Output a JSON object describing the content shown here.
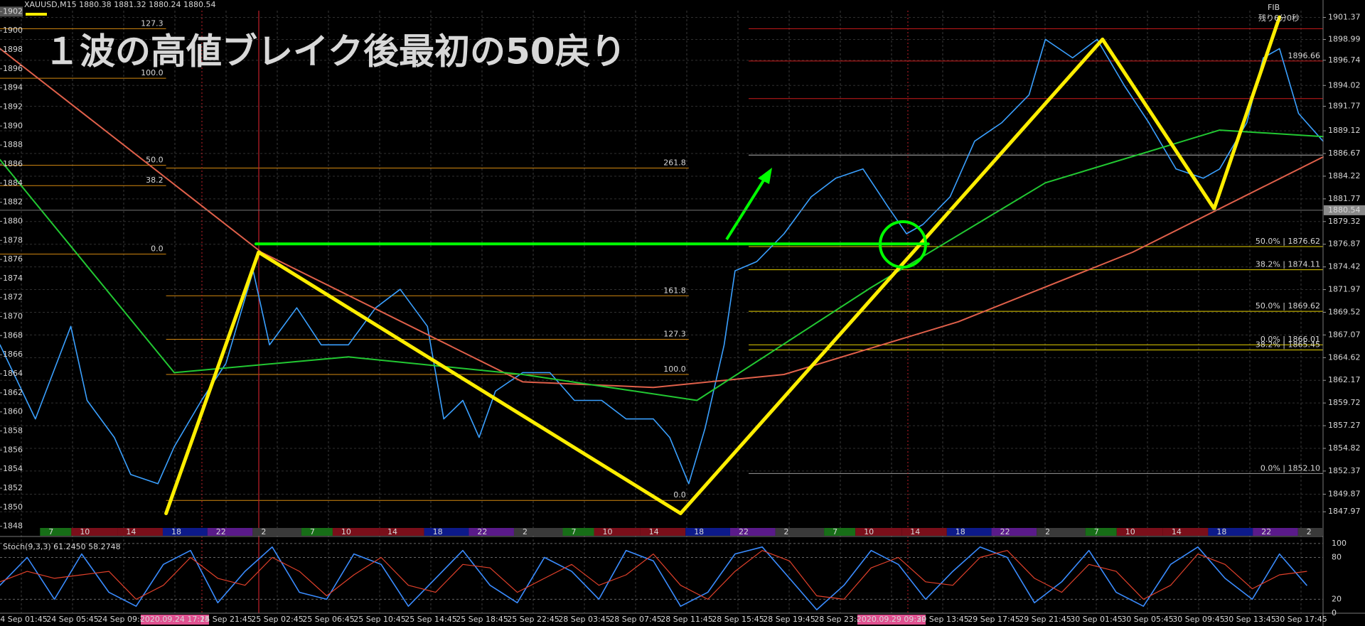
{
  "chart_data": [
    {
      "type": "line",
      "symbol_label": "XAUUSD,M15  1880.38 1881.32 1880.24 1880.54",
      "title": "１波の高値ブレイク後最初の50戻り",
      "fib_title": "FIB",
      "timer_label": "残り6分0秒",
      "current_price": 1880.54,
      "xlim": [
        0,
        486
      ],
      "ylim": [
        1846.3,
        1902.1
      ],
      "yticks": [
        1901.37,
        1898.99,
        1896.74,
        1894.02,
        1891.77,
        1889.12,
        1886.67,
        1884.22,
        1881.77,
        1879.32,
        1876.87,
        1874.42,
        1871.97,
        1869.52,
        1867.07,
        1864.62,
        1862.17,
        1859.72,
        1857.27,
        1854.82,
        1852.37,
        1849.87,
        1847.97
      ],
      "y2lim": [
        1847.9,
        1902.1
      ],
      "y2ticks": [
        1902,
        1900,
        1898,
        1896,
        1894,
        1892,
        1890,
        1888,
        1886,
        1884,
        1882,
        1880,
        1878,
        1876,
        1874,
        1872,
        1870,
        1868,
        1866,
        1864,
        1862,
        1860,
        1858,
        1856,
        1854,
        1852,
        1850,
        1848
      ],
      "grid": true,
      "series": [
        {
          "color": "#3aa0ff",
          "width": 1.6,
          "x": [
            0,
            13,
            26,
            32,
            42,
            48,
            58,
            64,
            74,
            83,
            93,
            99,
            109,
            118,
            128,
            138,
            147,
            157,
            163,
            170,
            176,
            182,
            192,
            202,
            211,
            221,
            230,
            240,
            246,
            253,
            259,
            266,
            270,
            278,
            288,
            298,
            307,
            317,
            326,
            333,
            339,
            349,
            358,
            368,
            378,
            384,
            394,
            403,
            413,
            422,
            432,
            442,
            448,
            458,
            464,
            470,
            477,
            486
          ],
          "values": [
            1866,
            1858,
            1868,
            1860,
            1856,
            1852,
            1851,
            1855,
            1860,
            1864,
            1874,
            1866,
            1870,
            1866,
            1866,
            1870,
            1872,
            1868,
            1858,
            1860,
            1856,
            1861,
            1863,
            1863,
            1860,
            1860,
            1858,
            1858,
            1856,
            1851,
            1857,
            1866,
            1874,
            1875,
            1878,
            1882,
            1884,
            1885,
            1881,
            1878,
            1879,
            1882,
            1888,
            1890,
            1893,
            1899,
            1897,
            1899,
            1894,
            1890,
            1885,
            1884,
            1885,
            1890,
            1897,
            1898,
            1891,
            1888
          ]
        },
        {
          "color": "#e0604a",
          "width": 2,
          "x": [
            0,
            96,
            192,
            240,
            288,
            352,
            416,
            486
          ],
          "values": [
            1898,
            1876,
            1862,
            1861.4,
            1862.8,
            1868.5,
            1876,
            1886.3
          ]
        },
        {
          "color": "#22c832",
          "width": 2,
          "x": [
            0,
            64,
            128,
            192,
            256,
            320,
            384,
            448,
            486
          ],
          "values": [
            1886,
            1863,
            1864.7,
            1862.8,
            1860,
            1872.2,
            1883.5,
            1889.2,
            1888.5
          ]
        },
        {
          "color": "#ffee00",
          "width": 5,
          "x": [
            61,
            95,
            250,
            405,
            446,
            470
          ],
          "values": [
            1847.8,
            1876,
            1847.8,
            1899,
            1880.7,
            1901.4
          ]
        },
        {
          "color": "#00ff00",
          "width": 4,
          "x": [
            94,
            341
          ],
          "values": [
            1876.9,
            1876.9
          ]
        }
      ],
      "fib_levels": [
        {
          "text": "127.3",
          "price": 1900.15,
          "x": [
            0,
            61
          ],
          "color": "#d4880f"
        },
        {
          "text": "100.0",
          "price": 1894.8,
          "x": [
            0,
            61
          ],
          "color": "#d4880f"
        },
        {
          "text": "50.0",
          "price": 1885.4,
          "x": [
            0,
            61
          ],
          "color": "#d4880f"
        },
        {
          "text": "38.2",
          "price": 1883.2,
          "x": [
            0,
            61
          ],
          "color": "#d4880f"
        },
        {
          "text": "0.0",
          "price": 1875.8,
          "x": [
            0,
            61
          ],
          "color": "#d4880f"
        },
        {
          "text": "261.8",
          "price": 1885.1,
          "x": [
            61,
            253
          ],
          "color": "#d4880f"
        },
        {
          "text": "161.8",
          "price": 1871.3,
          "x": [
            61,
            253
          ],
          "color": "#d4880f"
        },
        {
          "text": "127.3",
          "price": 1866.6,
          "x": [
            61,
            253
          ],
          "color": "#d4880f"
        },
        {
          "text": "100.0",
          "price": 1862.8,
          "x": [
            61,
            253
          ],
          "color": "#d4880f"
        },
        {
          "text": "0.0",
          "price": 1849.2,
          "x": [
            61,
            253
          ],
          "color": "#d4880f"
        },
        {
          "price": 1900.15,
          "x": [
            275,
            486
          ],
          "color": "#cc1a1a"
        },
        {
          "text": "1896.66",
          "price": 1896.66,
          "x": [
            275,
            486
          ],
          "color": "#cc1a1a"
        },
        {
          "price": 1892.6,
          "x": [
            275,
            486
          ],
          "color": "#cc1a1a"
        },
        {
          "price": 1886.5,
          "x": [
            275,
            486
          ],
          "color": "#b0b0b0"
        },
        {
          "text": "50.0% | 1876.62",
          "price": 1876.62,
          "x": [
            275,
            486
          ],
          "color": "#e6d000"
        },
        {
          "text": "38.2% | 1874.11",
          "price": 1874.11,
          "x": [
            275,
            486
          ],
          "color": "#e6d000"
        },
        {
          "text": "50.0% | 1869.62",
          "price": 1869.62,
          "x": [
            275,
            486
          ],
          "color": "#e6d000"
        },
        {
          "text": "0.0% | 1866.01",
          "price": 1866.01,
          "x": [
            275,
            486
          ],
          "color": "#e6d000"
        },
        {
          "text": "38.2% | 1865.45",
          "price": 1865.45,
          "x": [
            275,
            486
          ],
          "color": "#e6d000"
        },
        {
          "text": "0.0% | 1852.10",
          "price": 1852.1,
          "x": [
            275,
            486
          ],
          "color": "#9a9a9a"
        }
      ],
      "session": [
        {
          "text": "7",
          "x": 14.7,
          "color": "#176e17"
        },
        {
          "text": "10",
          "x": 26.2,
          "color": "#7a0f1a"
        },
        {
          "text": "14",
          "x": 43.2,
          "color": "#7a0f1a"
        },
        {
          "text": "18",
          "x": 59.8,
          "color": "#0d1a8a"
        },
        {
          "text": "22",
          "x": 76.2,
          "color": "#5a1a8a"
        },
        {
          "text": "2",
          "x": 92.8,
          "color": "#3a3a3a"
        },
        {
          "text": "7",
          "x": 110.7,
          "color": "#176e17"
        },
        {
          "text": "10",
          "x": 122.2,
          "color": "#7a0f1a"
        },
        {
          "text": "14",
          "x": 139.2,
          "color": "#7a0f1a"
        },
        {
          "text": "18",
          "x": 155.8,
          "color": "#0d1a8a"
        },
        {
          "text": "22",
          "x": 172.2,
          "color": "#5a1a8a"
        },
        {
          "text": "2",
          "x": 188.8,
          "color": "#3a3a3a"
        },
        {
          "text": "7",
          "x": 206.7,
          "color": "#176e17"
        },
        {
          "text": "10",
          "x": 218.2,
          "color": "#7a0f1a"
        },
        {
          "text": "14",
          "x": 235.2,
          "color": "#7a0f1a"
        },
        {
          "text": "18",
          "x": 251.8,
          "color": "#0d1a8a"
        },
        {
          "text": "22",
          "x": 268.2,
          "color": "#5a1a8a"
        },
        {
          "text": "2",
          "x": 284.8,
          "color": "#3a3a3a"
        },
        {
          "text": "7",
          "x": 302.7,
          "color": "#176e17"
        },
        {
          "text": "10",
          "x": 314.2,
          "color": "#7a0f1a"
        },
        {
          "text": "14",
          "x": 331.2,
          "color": "#7a0f1a"
        },
        {
          "text": "18",
          "x": 347.8,
          "color": "#0d1a8a"
        },
        {
          "text": "22",
          "x": 364.2,
          "color": "#5a1a8a"
        },
        {
          "text": "2",
          "x": 380.8,
          "color": "#3a3a3a"
        },
        {
          "text": "7",
          "x": 398.7,
          "color": "#176e17"
        },
        {
          "text": "10",
          "x": 410.2,
          "color": "#7a0f1a"
        },
        {
          "text": "14",
          "x": 427.2,
          "color": "#7a0f1a"
        },
        {
          "text": "18",
          "x": 443.8,
          "color": "#0d1a8a"
        },
        {
          "text": "22",
          "x": 460.2,
          "color": "#5a1a8a"
        },
        {
          "text": "2",
          "x": 476.8,
          "color": "#3a3a3a"
        }
      ],
      "time_labels": [
        {
          "text": "24 Sep 01:45"
        },
        {
          "text": "24 Sep 05:45"
        },
        {
          "text": "24 Sep 09:45"
        },
        {
          "text": "2020.09.24 17:15",
          "highlight": true
        },
        {
          "text": "24 Sep 21:45"
        },
        {
          "text": "25 Sep 02:45"
        },
        {
          "text": "25 Sep 06:45"
        },
        {
          "text": "25 Sep 10:45"
        },
        {
          "text": "25 Sep 14:45"
        },
        {
          "text": "25 Sep 18:45"
        },
        {
          "text": "25 Sep 22:45"
        },
        {
          "text": "28 Sep 03:45"
        },
        {
          "text": "28 Sep 07:45"
        },
        {
          "text": "28 Sep 11:45"
        },
        {
          "text": "28 Sep 15:45"
        },
        {
          "text": "28 Sep 19:45"
        },
        {
          "text": "28 Sep 23:45"
        },
        {
          "text": "2020.09.29 09:30",
          "highlight": true
        },
        {
          "text": "29 Sep 13:45"
        },
        {
          "text": "29 Sep 17:45"
        },
        {
          "text": "29 Sep 21:45"
        },
        {
          "text": "30 Sep 01:45"
        },
        {
          "text": "30 Sep 05:45"
        },
        {
          "text": "30 Sep 09:45"
        },
        {
          "text": "30 Sep 13:45"
        },
        {
          "text": "30 Sep 17:45"
        }
      ]
    },
    {
      "type": "line",
      "title": "Stoch(9,3,3) 61.2450 58.2748",
      "xlim": [
        0,
        486
      ],
      "ylim": [
        0,
        108
      ],
      "yticks": [
        100,
        80,
        20,
        0
      ],
      "grid": true,
      "series": [
        {
          "color": "#3a8cff",
          "width": 1.6,
          "x": [
            0,
            10,
            20,
            30,
            40,
            50,
            60,
            70,
            80,
            90,
            100,
            110,
            120,
            130,
            140,
            150,
            160,
            170,
            180,
            190,
            200,
            210,
            220,
            230,
            240,
            250,
            260,
            270,
            280,
            290,
            300,
            310,
            320,
            330,
            340,
            350,
            360,
            370,
            380,
            390,
            400,
            410,
            420,
            430,
            440,
            450,
            460,
            470,
            480
          ],
          "values": [
            40,
            80,
            20,
            85,
            30,
            10,
            70,
            90,
            15,
            60,
            95,
            30,
            20,
            85,
            70,
            10,
            50,
            90,
            40,
            15,
            80,
            60,
            20,
            90,
            75,
            10,
            30,
            85,
            95,
            50,
            5,
            40,
            90,
            70,
            20,
            60,
            95,
            80,
            15,
            45,
            90,
            30,
            10,
            70,
            95,
            50,
            20,
            85,
            40
          ]
        },
        {
          "color": "#e0402a",
          "width": 1.2,
          "x": [
            0,
            10,
            20,
            30,
            40,
            50,
            60,
            70,
            80,
            90,
            100,
            110,
            120,
            130,
            140,
            150,
            160,
            170,
            180,
            190,
            200,
            210,
            220,
            230,
            240,
            250,
            260,
            270,
            280,
            290,
            300,
            310,
            320,
            330,
            340,
            350,
            360,
            370,
            380,
            390,
            400,
            410,
            420,
            430,
            440,
            450,
            460,
            470,
            480
          ],
          "values": [
            45,
            60,
            50,
            55,
            60,
            20,
            40,
            80,
            50,
            40,
            80,
            60,
            25,
            55,
            80,
            40,
            30,
            70,
            65,
            30,
            50,
            70,
            40,
            55,
            85,
            40,
            20,
            60,
            90,
            75,
            25,
            20,
            65,
            80,
            45,
            40,
            80,
            90,
            50,
            30,
            70,
            60,
            20,
            40,
            85,
            70,
            35,
            55,
            60
          ]
        }
      ]
    }
  ]
}
